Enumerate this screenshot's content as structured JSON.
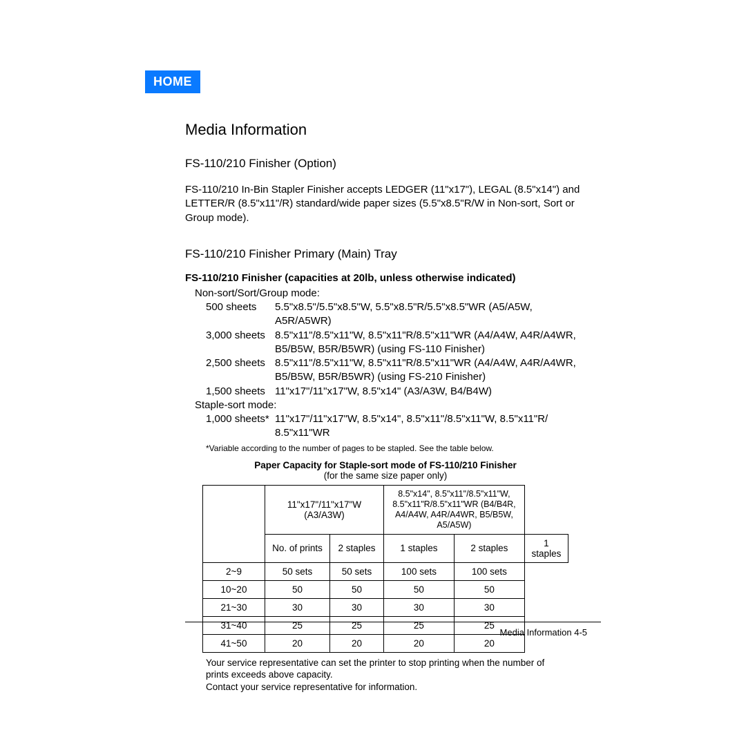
{
  "home_label": "HOME",
  "title": "Media Information",
  "section": "FS-110/210 Finisher (Option)",
  "intro": "FS-110/210 In-Bin Stapler Finisher accepts LEDGER (11\"x17\"), LEGAL (8.5\"x14\") and LETTER/R (8.5\"x11\"/R) standard/wide paper sizes (5.5\"x8.5\"R/W in Non-sort, Sort or Group mode).",
  "subhead": "FS-110/210 Finisher Primary (Main) Tray",
  "cap_title": "FS-110/210 Finisher (capacities at 20lb, unless otherwise indicated)",
  "mode1": "Non-sort/Sort/Group mode:",
  "r1q": "500 sheets",
  "r1d": "5.5\"x8.5\"/5.5\"x8.5\"W, 5.5\"x8.5\"R/5.5\"x8.5\"WR (A5/A5W, A5R/A5WR)",
  "r2q": "3,000 sheets",
  "r2d": "8.5\"x11\"/8.5\"x11\"W, 8.5\"x11\"R/8.5\"x11\"WR (A4/A4W, A4R/A4WR, B5/B5W, B5R/B5WR) (using FS-110 Finisher)",
  "r3q": "2,500 sheets",
  "r3d": "8.5\"x11\"/8.5\"x11\"W, 8.5\"x11\"R/8.5\"x11\"WR (A4/A4W, A4R/A4WR, B5/B5W, B5R/B5WR) (using FS-210 Finisher)",
  "r4q": "1,500 sheets",
  "r4d": "11\"x17\"/11\"x17\"W, 8.5\"x14\" (A3/A3W, B4/B4W)",
  "mode2": "Staple-sort mode:",
  "r5q": "1,000 sheets*",
  "r5d": "11\"x17\"/11\"x17\"W, 8.5\"x14\", 8.5\"x11\"/8.5\"x11\"W, 8.5\"x11\"R/ 8.5\"x11\"WR",
  "footnote": "*Variable according to the number of pages to be stapled. See the table below.",
  "tbl_title": "Paper Capacity for Staple-sort mode of FS-110/210 Finisher",
  "tbl_sub": "(for the same size paper only)",
  "th_a": "11\"x17\"/11\"x17\"W (A3/A3W)",
  "th_b": "8.5\"x14\", 8.5\"x11\"/8.5\"x11\"W, 8.5\"x11\"R/8.5\"x11\"WR (B4/B4R, A4/A4W, A4R/A4WR, B5/B5W, A5/A5W)",
  "th_c0": "No. of prints",
  "th_c1": "2 staples",
  "th_c2": "1 staples",
  "th_c3": "2 staples",
  "th_c4": "1 staples",
  "rows": [
    [
      "2~9",
      "50 sets",
      "50 sets",
      "100 sets",
      "100 sets"
    ],
    [
      "10~20",
      "50",
      "50",
      "50",
      "50"
    ],
    [
      "21~30",
      "30",
      "30",
      "30",
      "30"
    ],
    [
      "31~40",
      "25",
      "25",
      "25",
      "25"
    ],
    [
      "41~50",
      "20",
      "20",
      "20",
      "20"
    ]
  ],
  "post1": "Your service representative can set the printer to stop printing when the number of prints exceeds above capacity.",
  "post2": "Contact your service representative for information.",
  "footer": "Media Information 4-5"
}
